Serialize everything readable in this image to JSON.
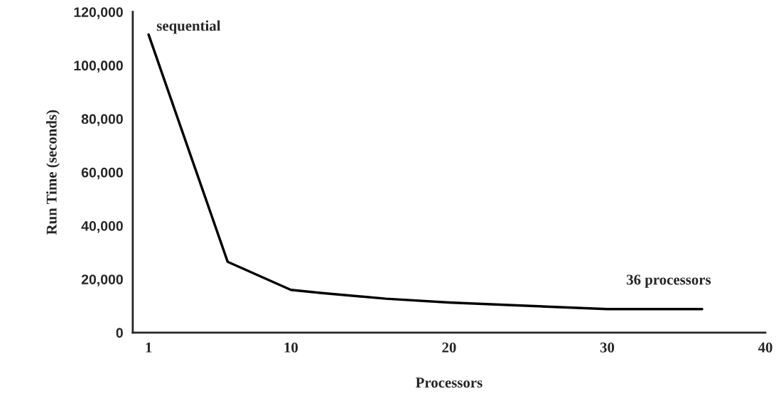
{
  "chart_data": {
    "type": "line",
    "xlabel": "Processors",
    "ylabel": "Run Time (seconds)",
    "x": [
      1,
      6,
      10,
      12,
      16,
      20,
      24,
      30,
      36
    ],
    "series": [
      {
        "color": "#000000",
        "values": [
          111500,
          26500,
          16000,
          14800,
          12700,
          11300,
          10300,
          8800,
          8800
        ]
      }
    ],
    "xlim": [
      0,
      40
    ],
    "xticks": [
      1,
      10,
      20,
      30,
      40
    ],
    "ylim": [
      0,
      120000
    ],
    "yticks": [
      {
        "value": 0,
        "label": "0"
      },
      {
        "value": 20000,
        "label": "20,000"
      },
      {
        "value": 40000,
        "label": "40,000"
      },
      {
        "value": 60000,
        "label": "60,000"
      },
      {
        "value": 80000,
        "label": "80,000"
      },
      {
        "value": 100000,
        "label": "100,000"
      },
      {
        "value": 120000,
        "label": "120,000"
      }
    ],
    "annotations": [
      {
        "text": "sequential",
        "x": 1,
        "y": 111500
      },
      "36 processors"
    ],
    "grid": false,
    "legend": false,
    "marker": "none",
    "line_style": "solid"
  }
}
